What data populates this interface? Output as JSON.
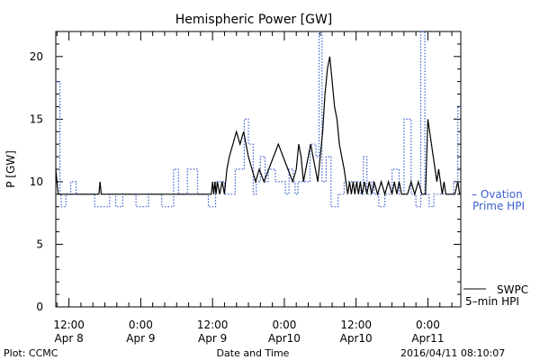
{
  "chart_data": {
    "type": "line",
    "title": "Hemispheric Power [GW]",
    "ylabel": "P [GW]",
    "xlabel": "Date and Time",
    "ylim": [
      0,
      22
    ],
    "xlim_hours_from_tick0": [
      -2.2,
      65.5
    ],
    "yticks": [
      0,
      5,
      10,
      15,
      20
    ],
    "xticks": [
      {
        "t": 0,
        "top": "12:00",
        "bottom": "Apr 8"
      },
      {
        "t": 12,
        "top": "0:00",
        "bottom": "Apr 9"
      },
      {
        "t": 24,
        "top": "12:00",
        "bottom": "Apr 9"
      },
      {
        "t": 36,
        "top": "0:00",
        "bottom": "Apr10"
      },
      {
        "t": 48,
        "top": "12:00",
        "bottom": "Apr10"
      },
      {
        "t": 60,
        "top": "0:00",
        "bottom": "Apr11"
      }
    ],
    "series": [
      {
        "name": "Ovation Prime HPI",
        "legend_lines": [
          "– Ovation",
          "Prime HPI"
        ],
        "color": "#3a5fcd",
        "style": "dotted-step",
        "t": [
          -2.2,
          -1.5,
          -1.3,
          -0.5,
          0.3,
          1.2,
          2.2,
          4.3,
          6.8,
          7.8,
          9.0,
          11.2,
          13.3,
          15.5,
          17.5,
          18.3,
          19.8,
          21.5,
          23.3,
          24.5,
          26.0,
          27.8,
          29.3,
          30.0,
          30.8,
          31.3,
          32.0,
          32.8,
          33.3,
          34.5,
          36.2,
          36.8,
          37.5,
          37.8,
          38.3,
          40.3,
          41.3,
          41.8,
          42.3,
          43.0,
          43.8,
          45.0,
          46.0,
          48.8,
          49.2,
          49.8,
          50.5,
          51.0,
          51.8,
          52.8,
          54.0,
          55.2,
          56.0,
          57.2,
          58.0,
          58.8,
          59.5,
          60.2,
          61.0,
          62.0,
          62.5,
          63.0,
          64.3,
          65.0,
          65.5
        ],
        "y": [
          18,
          9,
          8,
          9,
          10,
          9,
          9,
          8,
          9,
          8,
          9,
          8,
          9,
          8,
          11,
          9,
          11,
          9,
          8,
          10,
          9,
          11,
          15,
          13,
          9,
          10,
          12,
          10,
          11,
          10,
          9,
          11,
          10,
          9,
          10,
          13,
          12,
          22,
          10,
          12,
          8,
          9,
          10,
          9,
          12,
          9,
          10,
          9,
          8,
          9,
          11,
          9,
          15,
          9,
          8,
          22,
          9,
          8,
          9,
          9,
          9,
          9,
          10,
          16,
          16
        ]
      },
      {
        "name": "SWPC 5-min HPI",
        "legend_lines": [
          "SWPC",
          "5–min HPI"
        ],
        "color": "#000000",
        "style": "solid",
        "t": [
          -2.2,
          -2.0,
          -1.8,
          5.0,
          5.2,
          5.4,
          23.8,
          24.0,
          24.2,
          24.4,
          24.6,
          24.8,
          25.2,
          25.6,
          26.0,
          26.4,
          26.8,
          27.4,
          28.0,
          28.6,
          29.2,
          30.0,
          30.6,
          31.2,
          31.8,
          32.6,
          33.4,
          34.2,
          35.0,
          35.8,
          36.6,
          37.4,
          38.0,
          38.4,
          38.8,
          39.2,
          39.6,
          40.0,
          40.4,
          40.8,
          41.2,
          41.6,
          42.0,
          42.4,
          42.8,
          43.2,
          43.6,
          44.0,
          44.4,
          44.8,
          45.2,
          45.6,
          46.0,
          46.3,
          46.6,
          46.9,
          47.2,
          47.5,
          47.8,
          48.1,
          48.4,
          48.7,
          49.0,
          49.4,
          49.8,
          50.2,
          50.6,
          51.0,
          51.6,
          52.2,
          52.8,
          53.4,
          54.0,
          54.4,
          54.8,
          55.2,
          55.6,
          56.0,
          56.6,
          57.2,
          57.8,
          58.4,
          59.0,
          59.6,
          60.0,
          60.3,
          60.6,
          60.9,
          61.2,
          61.5,
          61.8,
          62.1,
          62.4,
          62.7,
          63.0,
          63.3,
          64.0,
          64.5,
          65.0,
          65.3
        ],
        "y": [
          11,
          10,
          9,
          9,
          10,
          9,
          9,
          10,
          9,
          10,
          9,
          10,
          9,
          10,
          9,
          11,
          12,
          13,
          14,
          13,
          14,
          12,
          11,
          10,
          11,
          10,
          11,
          12,
          13,
          12,
          11,
          10,
          11,
          13,
          12,
          10,
          11,
          12,
          13,
          12,
          11,
          10,
          12,
          14,
          17,
          19,
          20,
          18,
          16,
          15,
          13,
          12,
          11,
          10,
          9,
          10,
          9,
          10,
          9,
          10,
          9,
          10,
          9,
          10,
          9,
          10,
          9,
          10,
          9,
          10,
          9,
          10,
          9,
          10,
          9,
          10,
          9,
          9,
          9,
          10,
          9,
          10,
          9,
          9,
          15,
          14,
          13,
          12,
          11,
          10,
          11,
          10,
          9,
          10,
          9,
          9,
          9,
          9,
          10,
          9
        ]
      }
    ],
    "grid": false
  },
  "footer": {
    "left": "Plot: CCMC",
    "right": "2016/04/11 08:10:07"
  }
}
